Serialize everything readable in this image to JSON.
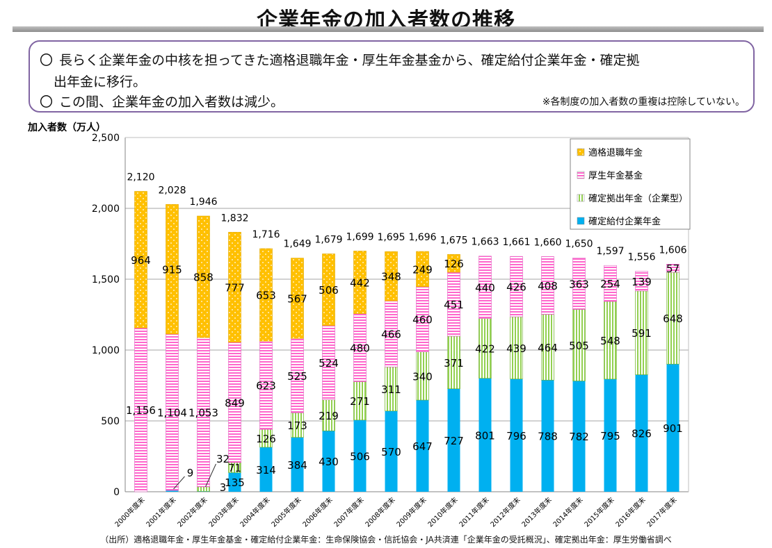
{
  "title": "企業年金の加入者数の推移",
  "summary": {
    "bullet_symbol": "〇",
    "line1": "長らく企業年金の中核を担ってきた適格退職年金・厚生年金基金から、確定給付企業年金・確定拠",
    "line2": "出年金に移行。",
    "line3": "この間、企業年金の加入者数は減少。",
    "note": "※各制度の加入者数の重複は控除していない。"
  },
  "source": "（出所）適格退職年金・厚生年金基金・確定給付企業年金：生命保険協会・信託協会・JA共済連「企業年金の受託概況」、確定拠出年金：厚生労働省調べ",
  "chart_data": {
    "type": "bar",
    "stacked": true,
    "ylabel": "加入者数（万人）",
    "ylim": [
      0,
      2500
    ],
    "yticks": [
      0,
      500,
      1000,
      1500,
      2000,
      2500
    ],
    "ytick_labels": [
      "0",
      "500",
      "1,000",
      "1,500",
      "2,000",
      "2,500"
    ],
    "legend_position": "top-right",
    "categories": [
      "2000年度末",
      "2001年度末",
      "2002年度末",
      "2003年度末",
      "2004年度末",
      "2005年度末",
      "2006年度末",
      "2007年度末",
      "2008年度末",
      "2009年度末",
      "2010年度末",
      "2011年度末",
      "2012年度末",
      "2013年度末",
      "2014年度末",
      "2015年度末",
      "2016年度末",
      "2017年度末"
    ],
    "series": [
      {
        "name": "確定給付企業年金",
        "color": "#00b0f0",
        "values": [
          0,
          9,
          3,
          135,
          314,
          384,
          430,
          506,
          570,
          647,
          727,
          801,
          796,
          788,
          782,
          795,
          826,
          901
        ],
        "labels": [
          "",
          "",
          "",
          "135",
          "314",
          "384",
          "430",
          "506",
          "570",
          "647",
          "727",
          "801",
          "796",
          "788",
          "782",
          "795",
          "826",
          "901"
        ]
      },
      {
        "name": "確定拠出年金（企業型）",
        "color": "#92d050",
        "values": [
          0,
          0,
          32,
          71,
          126,
          173,
          219,
          271,
          311,
          340,
          371,
          422,
          439,
          464,
          505,
          548,
          591,
          648
        ],
        "labels": [
          "",
          "",
          "",
          "71",
          "126",
          "173",
          "219",
          "271",
          "311",
          "340",
          "371",
          "422",
          "439",
          "464",
          "505",
          "548",
          "591",
          "648"
        ]
      },
      {
        "name": "厚生年金基金",
        "color": "#ff66cc",
        "values": [
          1156,
          1104,
          1053,
          849,
          623,
          525,
          524,
          480,
          466,
          460,
          451,
          440,
          426,
          408,
          363,
          254,
          139,
          57
        ],
        "labels": [
          "1,156",
          "1,104",
          "1,053",
          "849",
          "623",
          "525",
          "524",
          "480",
          "466",
          "460",
          "451",
          "440",
          "426",
          "408",
          "363",
          "254",
          "139",
          "57"
        ]
      },
      {
        "name": "適格退職年金",
        "color": "#ffc000",
        "values": [
          964,
          915,
          858,
          777,
          653,
          567,
          506,
          442,
          348,
          249,
          126,
          0,
          0,
          0,
          0,
          0,
          0,
          0
        ],
        "labels": [
          "964",
          "915",
          "858",
          "777",
          "653",
          "567",
          "506",
          "442",
          "348",
          "249",
          "126",
          "",
          "",
          "",
          "",
          "",
          "",
          ""
        ]
      }
    ],
    "totals": [
      "2,120",
      "2,028",
      "1,946",
      "1,832",
      "1,716",
      "1,649",
      "1,679",
      "1,699",
      "1,695",
      "1,696",
      "1,675",
      "1,663",
      "1,661",
      "1,660",
      "1,650",
      "1,597",
      "1,556",
      "1,606"
    ],
    "callouts": [
      {
        "category": "2001年度末",
        "text": "9"
      },
      {
        "category": "2002年度末",
        "text": "32"
      },
      {
        "category": "2002年度末",
        "text": "3"
      }
    ],
    "legend": [
      "適格退職年金",
      "厚生年金基金",
      "確定拠出年金（企業型）",
      "確定給付企業年金"
    ]
  }
}
